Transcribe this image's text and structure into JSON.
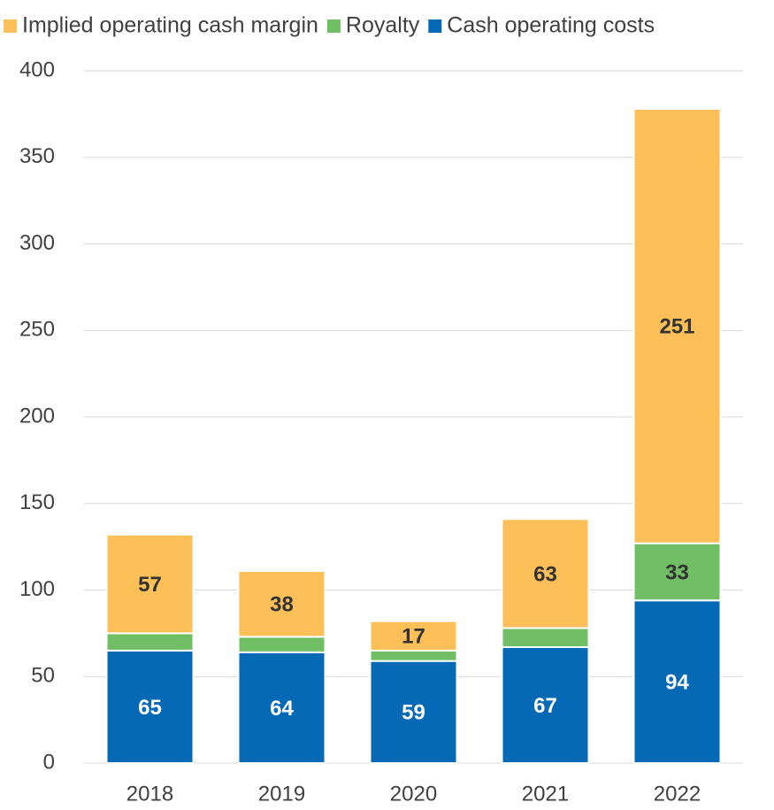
{
  "chart_data": {
    "type": "stacked_bar",
    "categories": [
      "2018",
      "2019",
      "2020",
      "2021",
      "2022"
    ],
    "series": [
      {
        "name": "Cash operating costs",
        "color": "#0569b5",
        "label_color": "#ffffff",
        "values": [
          65,
          64,
          59,
          67,
          94
        ]
      },
      {
        "name": "Royalty",
        "color": "#70bf64",
        "label_color": "#333333",
        "values": [
          10,
          9,
          6,
          11,
          33
        ],
        "value_labels": [
          null,
          null,
          null,
          null,
          "33"
        ]
      },
      {
        "name": "Implied operating cash margin",
        "color": "#fdbf57",
        "label_color": "#333333",
        "values": [
          57,
          38,
          17,
          63,
          251
        ]
      }
    ],
    "ylim": [
      0,
      400
    ],
    "yticks": [
      0,
      50,
      100,
      150,
      200,
      250,
      300,
      350,
      400
    ],
    "grid": true,
    "legend": "top"
  }
}
